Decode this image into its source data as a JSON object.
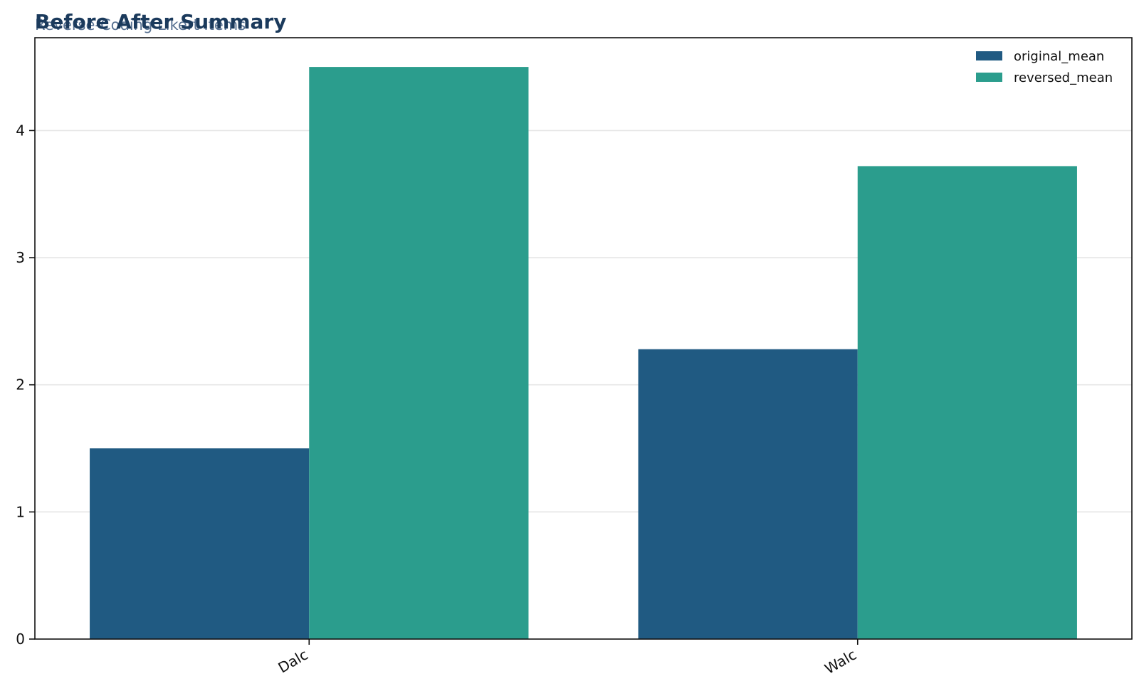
{
  "chart_data": {
    "type": "bar",
    "title": "Before After Summary",
    "subtitle": "Reverse-Coding Likert Items",
    "categories": [
      "Dalc",
      "Walc"
    ],
    "series": [
      {
        "name": "original_mean",
        "values": [
          1.5,
          2.28
        ],
        "color": "#205a82"
      },
      {
        "name": "reversed_mean",
        "values": [
          4.5,
          3.72
        ],
        "color": "#2b9d8d"
      }
    ],
    "yticks": [
      0,
      1,
      2,
      3,
      4
    ],
    "ylim": [
      0,
      4.73
    ],
    "grid": true,
    "legend_position": "top-right",
    "xlabel": "",
    "ylabel": ""
  }
}
